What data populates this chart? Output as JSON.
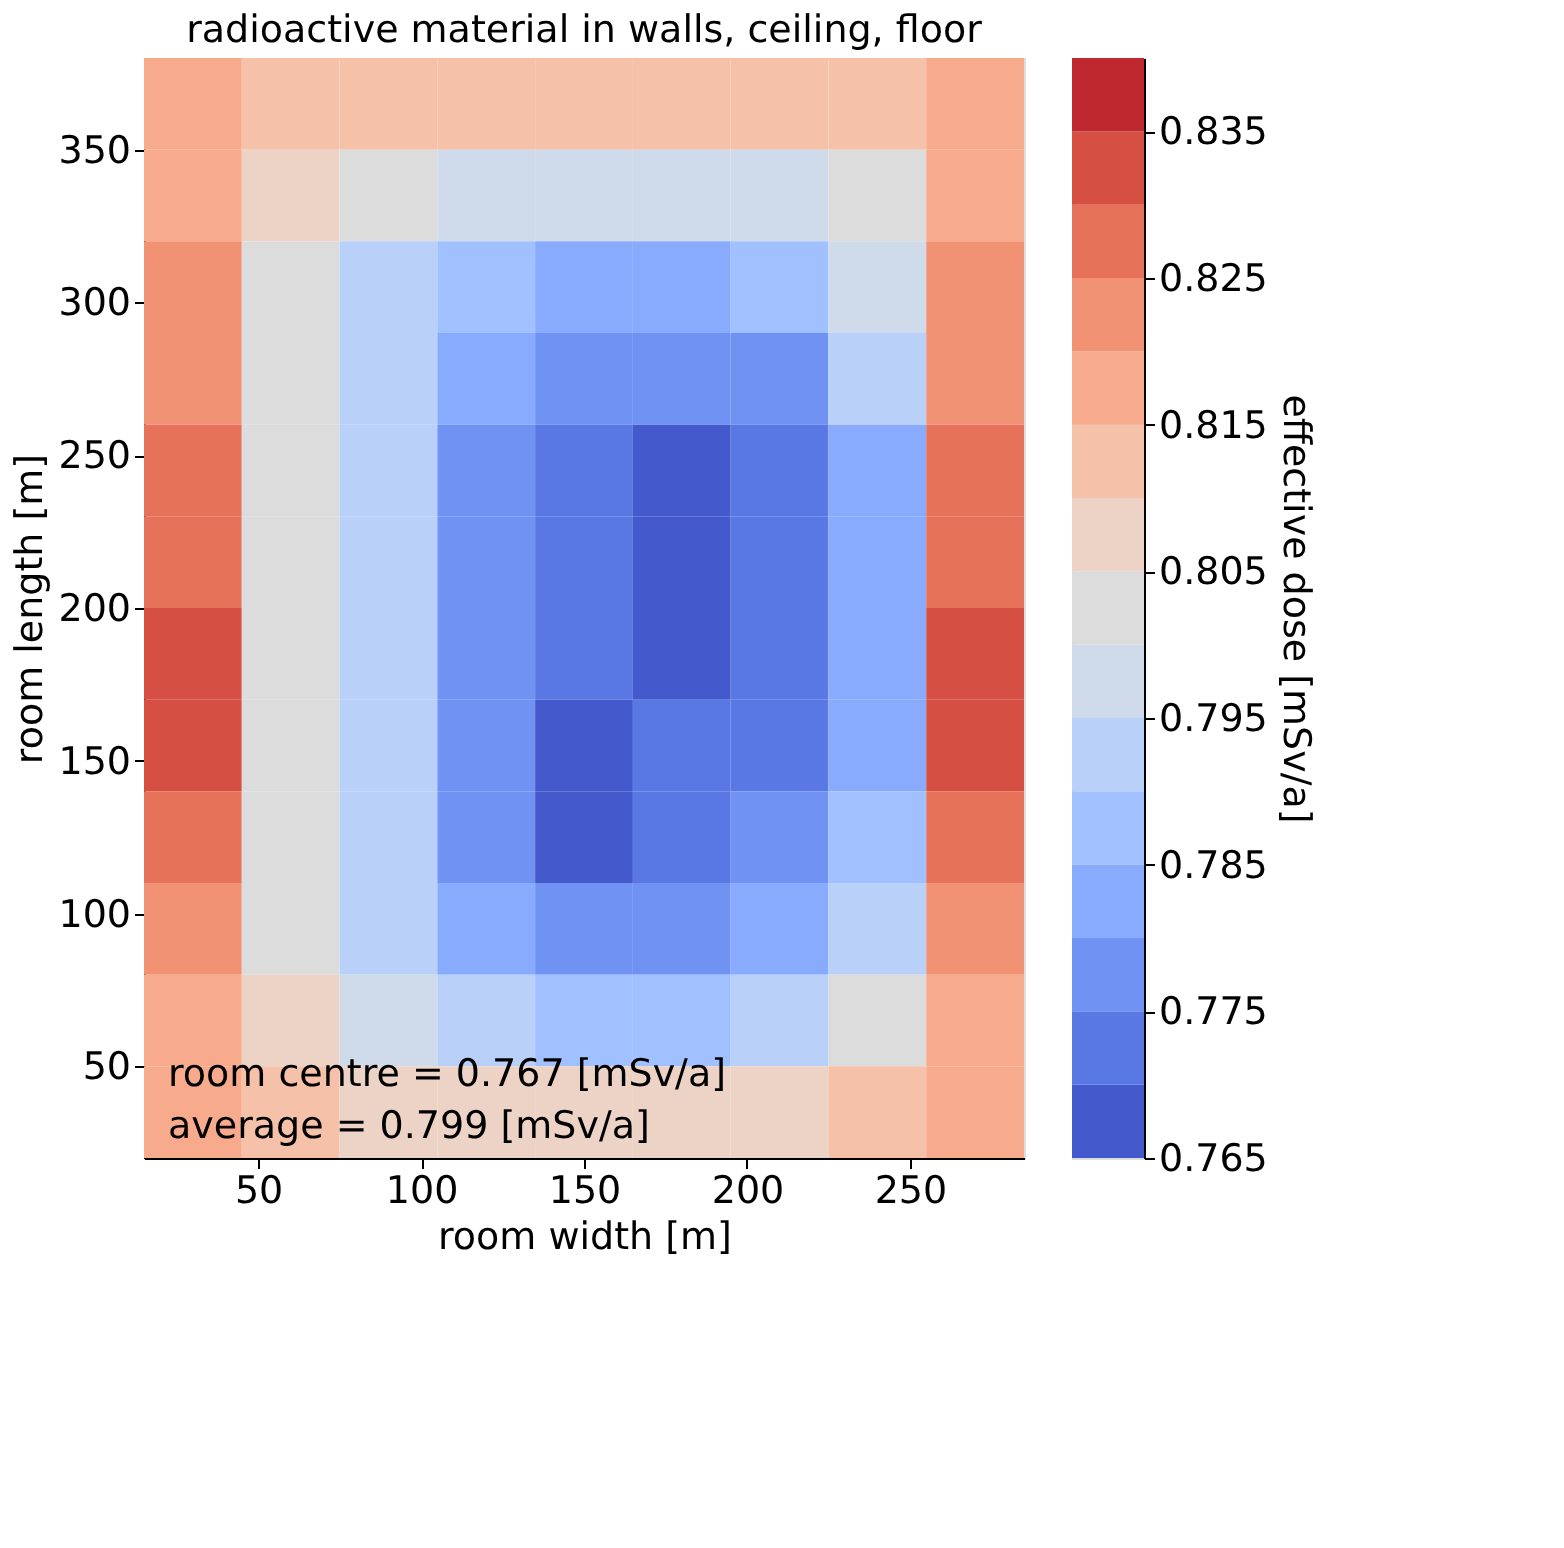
{
  "chart_data": {
    "type": "heatmap",
    "title": "radioactive material in walls, ceiling, floor",
    "xlabel": "room width [m]",
    "ylabel": "room length [m]",
    "clabel": "effective dose [mSv/a]",
    "annotations": [
      "room centre = 0.767 [mSv/a]",
      "average = 0.799 [mSv/a]"
    ],
    "x": [
      30,
      60,
      90,
      120,
      150,
      180,
      210,
      240,
      270
    ],
    "y": [
      365,
      335,
      305,
      275,
      245,
      215,
      185,
      155,
      125,
      95,
      65,
      35
    ],
    "cells": [
      [
        0.818,
        0.813,
        0.813,
        0.813,
        0.813,
        0.813,
        0.813,
        0.813,
        0.818
      ],
      [
        0.818,
        0.808,
        0.803,
        0.798,
        0.798,
        0.798,
        0.798,
        0.803,
        0.818
      ],
      [
        0.823,
        0.803,
        0.793,
        0.788,
        0.783,
        0.783,
        0.788,
        0.798,
        0.823
      ],
      [
        0.823,
        0.803,
        0.793,
        0.783,
        0.778,
        0.778,
        0.778,
        0.793,
        0.823
      ],
      [
        0.828,
        0.803,
        0.793,
        0.778,
        0.773,
        0.768,
        0.773,
        0.783,
        0.828
      ],
      [
        0.828,
        0.803,
        0.793,
        0.778,
        0.773,
        0.768,
        0.773,
        0.783,
        0.828
      ],
      [
        0.833,
        0.803,
        0.793,
        0.778,
        0.773,
        0.768,
        0.773,
        0.783,
        0.833
      ],
      [
        0.833,
        0.803,
        0.793,
        0.778,
        0.768,
        0.773,
        0.773,
        0.783,
        0.833
      ],
      [
        0.828,
        0.803,
        0.793,
        0.778,
        0.768,
        0.773,
        0.778,
        0.788,
        0.828
      ],
      [
        0.823,
        0.803,
        0.793,
        0.783,
        0.778,
        0.778,
        0.783,
        0.793,
        0.823
      ],
      [
        0.818,
        0.808,
        0.798,
        0.793,
        0.788,
        0.788,
        0.793,
        0.803,
        0.818
      ],
      [
        0.818,
        0.813,
        0.808,
        0.808,
        0.808,
        0.808,
        0.808,
        0.813,
        0.818
      ]
    ],
    "colors": [
      "#445acc",
      "#5a78e4",
      "#7093f3",
      "#88abfd",
      "#a1c0ff",
      "#b9d0f9",
      "#cfdaea",
      "#dddcdc",
      "#ecd3c5",
      "#f5c1a9",
      "#f7aa8c",
      "#f29274",
      "#e67259",
      "#d55042",
      "#c0282f"
    ],
    "xlim": [
      15,
      285
    ],
    "xticks": [
      50,
      100,
      150,
      200,
      250
    ],
    "ylim": [
      20,
      380
    ],
    "yticks": [
      50,
      100,
      150,
      200,
      250,
      300,
      350
    ],
    "clim": [
      0.765,
      0.84
    ],
    "cticks": [
      0.765,
      0.775,
      0.785,
      0.795,
      0.805,
      0.815,
      0.825,
      0.835
    ],
    "grid": false
  }
}
